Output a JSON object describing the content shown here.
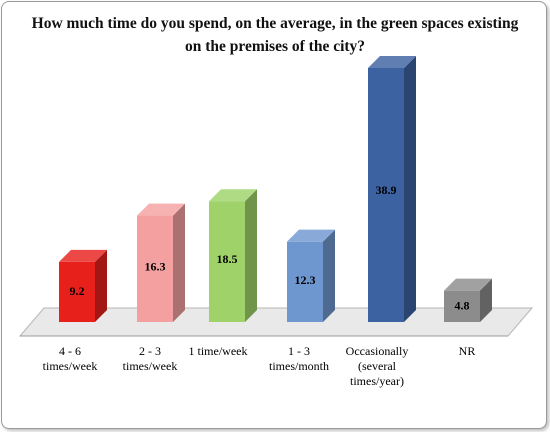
{
  "chart_data": {
    "type": "bar",
    "title": "How much time do you spend, on the average, in the green spaces existing on the premises of the city?",
    "categories": [
      [
        "4 - 6",
        "times/week"
      ],
      [
        "2 - 3",
        "times/week"
      ],
      [
        "1 time/week"
      ],
      [
        "1 - 3",
        "times/month"
      ],
      [
        "Occasionally",
        "(several",
        "times/year)"
      ],
      [
        "NR"
      ]
    ],
    "values": [
      9.2,
      16.3,
      18.5,
      12.3,
      38.9,
      4.8
    ],
    "value_labels": [
      "9.2",
      "16.3",
      "18.5",
      "12.3",
      "38.9",
      "4.8"
    ],
    "colors": [
      "#e8201c",
      "#f4a0a0",
      "#9fd36a",
      "#6f97cf",
      "#3d62a1",
      "#8c8c8c"
    ],
    "ylim": [
      0,
      40
    ],
    "grid": false,
    "legend": "none",
    "style": "3d-column"
  }
}
